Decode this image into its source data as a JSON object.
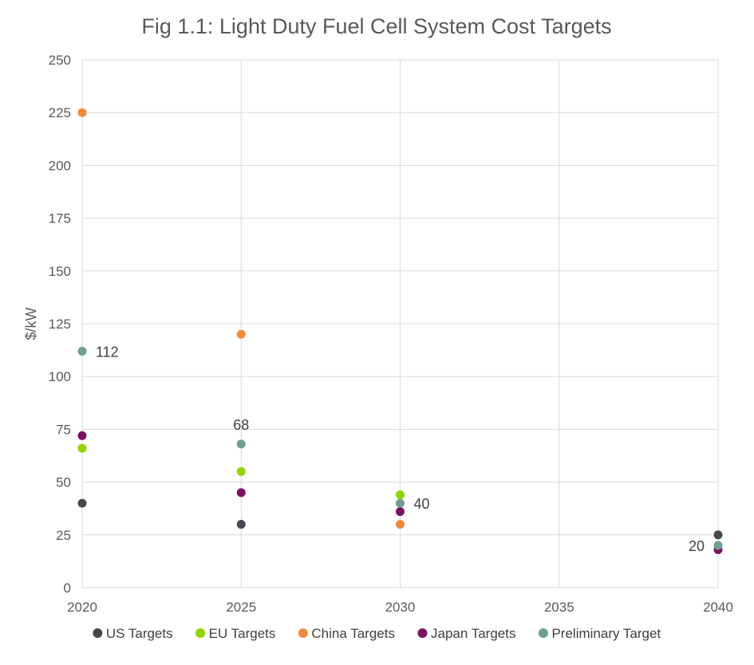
{
  "chart_data": {
    "type": "scatter",
    "title": "Fig 1.1: Light Duty Fuel Cell System Cost Targets",
    "xlabel": "",
    "ylabel": "$/kW",
    "xlim": [
      2020,
      2040
    ],
    "ylim": [
      0,
      250
    ],
    "x_ticks": [
      2020,
      2025,
      2030,
      2035,
      2040
    ],
    "y_ticks": [
      0,
      25,
      50,
      75,
      100,
      125,
      150,
      175,
      200,
      225,
      250
    ],
    "grid": true,
    "legend_position": "bottom",
    "series": [
      {
        "name": "US Targets",
        "color": "#44494f",
        "points": [
          {
            "x": 2020,
            "y": 40
          },
          {
            "x": 2025,
            "y": 30
          },
          {
            "x": 2040,
            "y": 25
          }
        ]
      },
      {
        "name": "EU Targets",
        "color": "#8fd400",
        "points": [
          {
            "x": 2020,
            "y": 66
          },
          {
            "x": 2025,
            "y": 55
          },
          {
            "x": 2030,
            "y": 44
          }
        ]
      },
      {
        "name": "China Targets",
        "color": "#f08a3e",
        "points": [
          {
            "x": 2020,
            "y": 225
          },
          {
            "x": 2025,
            "y": 120
          },
          {
            "x": 2030,
            "y": 30
          }
        ]
      },
      {
        "name": "Japan Targets",
        "color": "#7d1060",
        "points": [
          {
            "x": 2020,
            "y": 72
          },
          {
            "x": 2025,
            "y": 45
          },
          {
            "x": 2030,
            "y": 36
          },
          {
            "x": 2040,
            "y": 18
          }
        ]
      },
      {
        "name": "Preliminary Target",
        "color": "#6e9e94",
        "points": [
          {
            "x": 2020,
            "y": 112
          },
          {
            "x": 2025,
            "y": 68
          },
          {
            "x": 2030,
            "y": 40
          },
          {
            "x": 2040,
            "y": 20
          }
        ]
      }
    ],
    "data_labels": [
      {
        "series": "Preliminary Target",
        "x": 2020,
        "y": 112,
        "text": "112",
        "position": "right"
      },
      {
        "series": "Preliminary Target",
        "x": 2025,
        "y": 68,
        "text": "68",
        "position": "above"
      },
      {
        "series": "Preliminary Target",
        "x": 2030,
        "y": 40,
        "text": "40",
        "position": "right"
      },
      {
        "series": "Preliminary Target",
        "x": 2040,
        "y": 20,
        "text": "20",
        "position": "left"
      }
    ]
  }
}
